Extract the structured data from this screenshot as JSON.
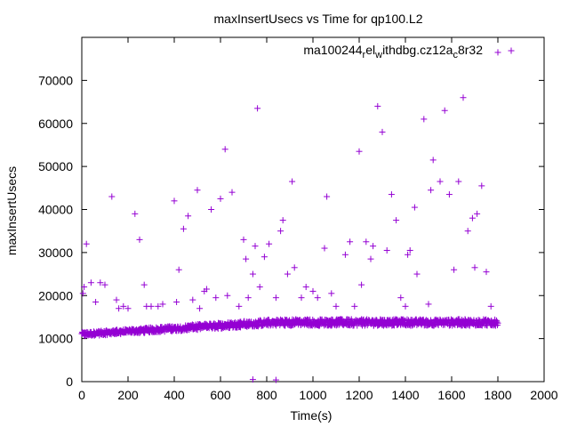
{
  "chart_data": {
    "type": "scatter",
    "title": "maxInsertUsecs vs Time for qp100.L2",
    "xlabel": "Time(s)",
    "ylabel": "maxInsertUsecs",
    "xlim": [
      0,
      2000
    ],
    "ylim": [
      0,
      80000
    ],
    "x_ticks": [
      "0",
      "200",
      "400",
      "600",
      "800",
      "1000",
      "1200",
      "1400",
      "1600",
      "1800",
      "2000"
    ],
    "y_ticks": [
      "0",
      "10000",
      "20000",
      "30000",
      "40000",
      "50000",
      "60000",
      "70000"
    ],
    "legend_position": "top-right",
    "grid": false,
    "series": [
      {
        "name": "ma100244_rel_withdbg.cz12a_c8r32",
        "color": "#9400d3",
        "marker": "plus",
        "x": [
          5,
          10,
          20,
          40,
          60,
          80,
          100,
          130,
          150,
          160,
          180,
          200,
          230,
          250,
          270,
          280,
          300,
          330,
          350,
          400,
          410,
          420,
          440,
          460,
          480,
          500,
          510,
          530,
          540,
          560,
          580,
          600,
          620,
          630,
          650,
          680,
          700,
          710,
          720,
          740,
          750,
          760,
          770,
          790,
          810,
          840,
          860,
          870,
          890,
          910,
          920,
          950,
          970,
          1000,
          1020,
          1050,
          1060,
          1080,
          1100,
          1140,
          1160,
          1180,
          1200,
          1210,
          1230,
          1250,
          1260,
          1280,
          1300,
          1320,
          1340,
          1360,
          1380,
          1400,
          1410,
          1420,
          1440,
          1450,
          1480,
          1500,
          1510,
          1520,
          1550,
          1570,
          1590,
          1610,
          1630,
          1650,
          1670,
          1690,
          1700,
          1710,
          1730,
          1750,
          1770,
          1800
        ],
        "y": [
          20500,
          22000,
          32000,
          23000,
          18500,
          23000,
          22500,
          43000,
          19000,
          17000,
          17500,
          17000,
          39000,
          33000,
          22500,
          17500,
          17500,
          17500,
          18000,
          42000,
          18500,
          26000,
          35500,
          38500,
          19000,
          44500,
          17000,
          21000,
          21500,
          40000,
          19500,
          42500,
          54000,
          20000,
          44000,
          17500,
          33000,
          28500,
          19500,
          25000,
          31500,
          63500,
          22000,
          29000,
          32000,
          19500,
          35000,
          37500,
          25000,
          46500,
          26500,
          19500,
          22000,
          21000,
          19500,
          31000,
          43000,
          20500,
          17500,
          29500,
          32500,
          17500,
          53500,
          22500,
          32500,
          28500,
          31500,
          64000,
          58000,
          30500,
          43500,
          37500,
          19500,
          17500,
          29500,
          30500,
          40500,
          25000,
          61000,
          18000,
          44500,
          51500,
          46500,
          63000,
          43500,
          26000,
          46500,
          66000,
          35000,
          38000,
          26500,
          39000,
          45500,
          25500,
          17500,
          76500
        ]
      }
    ],
    "band": {
      "x_range": [
        0,
        1800
      ],
      "y_start": [
        10500,
        11500
      ],
      "y_end": [
        13000,
        14500
      ],
      "outlier_low": [
        [
          740,
          500
        ],
        [
          840,
          400
        ]
      ]
    }
  }
}
